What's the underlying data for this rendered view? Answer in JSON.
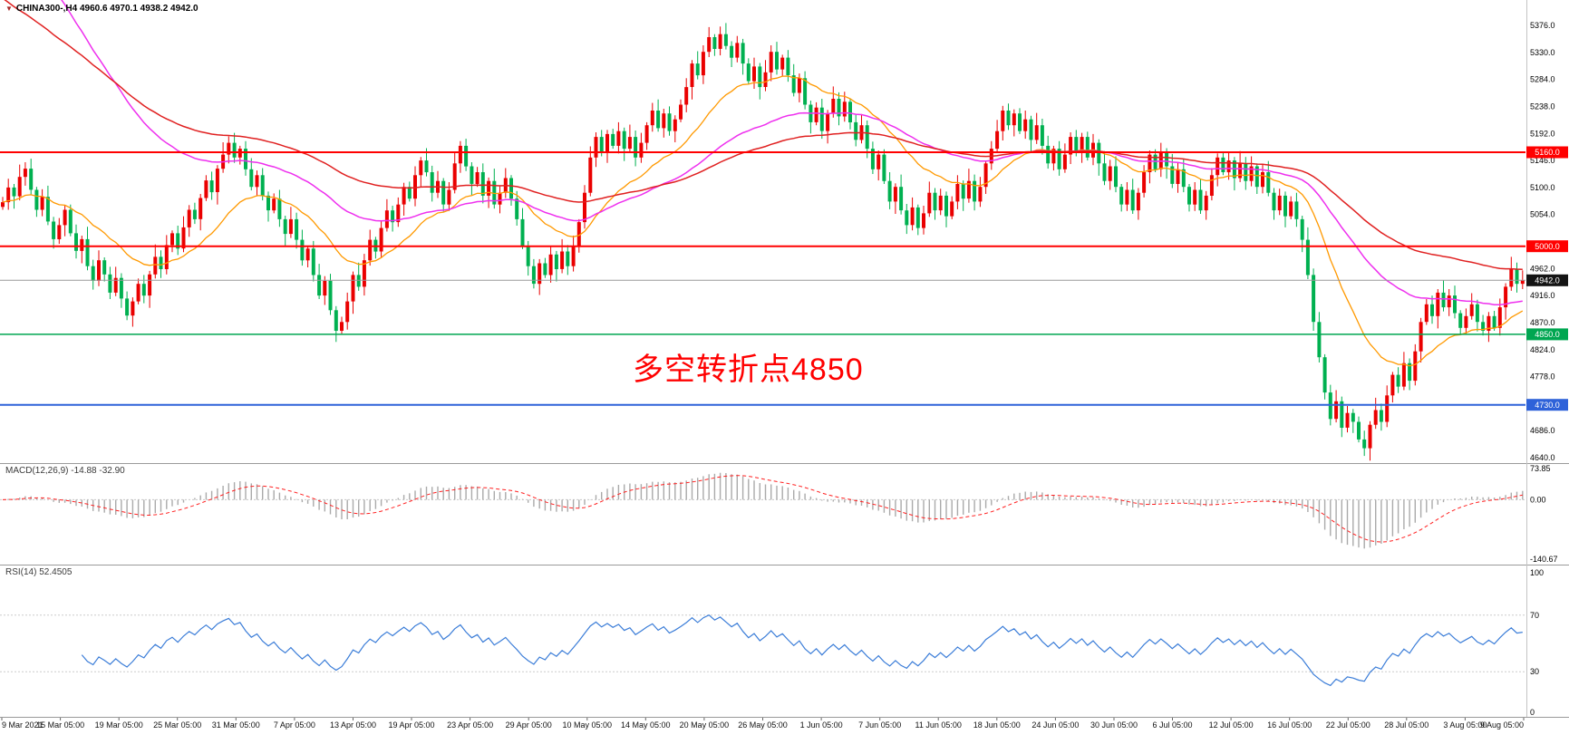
{
  "header": {
    "symbol_title": "CHINA300-,H4 4960.6 4970.1 4938.2 4942.0"
  },
  "annotation": {
    "text": "多空转折点4850",
    "color": "#ff0000"
  },
  "panels": {
    "macd": {
      "label": "MACD(12,26,9) -14.88 -32.90"
    },
    "rsi": {
      "label": "RSI(14) 52.4505"
    }
  },
  "chart_data": {
    "type": "candlestick",
    "symbol": "CHINA300-",
    "timeframe": "H4",
    "last_bar": {
      "open": 4960.6,
      "high": 4970.1,
      "low": 4938.2,
      "close": 4942.0
    },
    "price_ticks": [
      5376,
      5330,
      5284,
      5238,
      5192,
      5146,
      5100,
      5054,
      4962,
      4916,
      4870,
      4824,
      4778,
      4686,
      4640
    ],
    "time_labels": [
      "9 Mar 2021",
      "15 Mar 05:00",
      "19 Mar 05:00",
      "25 Mar 05:00",
      "31 Mar 05:00",
      "7 Apr 05:00",
      "13 Apr 05:00",
      "19 Apr 05:00",
      "23 Apr 05:00",
      "29 Apr 05:00",
      "10 May 05:00",
      "14 May 05:00",
      "20 May 05:00",
      "26 May 05:00",
      "1 Jun 05:00",
      "7 Jun 05:00",
      "11 Jun 05:00",
      "18 Jun 05:00",
      "24 Jun 05:00",
      "30 Jun 05:00",
      "6 Jul 05:00",
      "12 Jul 05:00",
      "16 Jul 05:00",
      "22 Jul 05:00",
      "28 Jul 05:00",
      "3 Aug 05:00",
      "9 Aug 05:00"
    ],
    "hlines": [
      {
        "value": 5160,
        "label": "5160.0",
        "color": "#ff0000",
        "width": 2
      },
      {
        "value": 5000,
        "label": "5000.0",
        "color": "#ff0000",
        "width": 2
      },
      {
        "value": 4850,
        "label": "4850.0",
        "color": "#00a651",
        "width": 1.5
      },
      {
        "value": 4730,
        "label": "4730.0",
        "color": "#2e62d9",
        "width": 2
      }
    ],
    "current_price": {
      "value": 4942,
      "label": "4942.0",
      "line_color": "#999999",
      "badge_color": "#141414"
    },
    "colors": {
      "up": "#ea0000",
      "down": "#00b050"
    },
    "closes": [
      5075,
      5100,
      5085,
      5118,
      5132,
      5096,
      5062,
      5084,
      5042,
      5012,
      5036,
      5062,
      5022,
      4992,
      5012,
      4966,
      4941,
      4976,
      4952,
      4921,
      4946,
      4911,
      4882,
      4906,
      4936,
      4916,
      4952,
      4982,
      4961,
      5002,
      5022,
      4996,
      5032,
      5062,
      5046,
      5082,
      5112,
      5092,
      5132,
      5156,
      5176,
      5151,
      5166,
      5131,
      5101,
      5121,
      5086,
      5061,
      5081,
      5046,
      5021,
      5046,
      5011,
      4976,
      4996,
      4951,
      4916,
      4941,
      4891,
      4856,
      4871,
      4906,
      4951,
      4931,
      4976,
      5011,
      4991,
      5031,
      5061,
      5041,
      5071,
      5101,
      5081,
      5121,
      5146,
      5126,
      5091,
      5111,
      5071,
      5096,
      5141,
      5171,
      5136,
      5106,
      5126,
      5086,
      5111,
      5071,
      5091,
      5116,
      5081,
      5046,
      5001,
      4966,
      4936,
      4971,
      4951,
      4986,
      4961,
      4991,
      4966,
      5001,
      5041,
      5091,
      5151,
      5186,
      5161,
      5191,
      5171,
      5196,
      5166,
      5186,
      5151,
      5176,
      5206,
      5231,
      5201,
      5226,
      5196,
      5216,
      5241,
      5271,
      5311,
      5291,
      5331,
      5356,
      5336,
      5361,
      5341,
      5321,
      5346,
      5311,
      5281,
      5306,
      5271,
      5296,
      5331,
      5301,
      5321,
      5291,
      5261,
      5286,
      5241,
      5211,
      5236,
      5196,
      5226,
      5251,
      5221,
      5246,
      5211,
      5181,
      5206,
      5166,
      5131,
      5156,
      5111,
      5076,
      5101,
      5061,
      5036,
      5066,
      5031,
      5056,
      5091,
      5061,
      5086,
      5051,
      5076,
      5106,
      5081,
      5111,
      5076,
      5101,
      5141,
      5166,
      5196,
      5231,
      5206,
      5226,
      5196,
      5216,
      5181,
      5206,
      5171,
      5141,
      5166,
      5131,
      5156,
      5186,
      5161,
      5186,
      5151,
      5176,
      5141,
      5111,
      5136,
      5101,
      5071,
      5096,
      5061,
      5091,
      5126,
      5156,
      5131,
      5161,
      5136,
      5106,
      5131,
      5101,
      5071,
      5096,
      5061,
      5086,
      5121,
      5151,
      5126,
      5146,
      5116,
      5141,
      5111,
      5136,
      5101,
      5126,
      5091,
      5061,
      5086,
      5051,
      5076,
      5046,
      5011,
      4951,
      4871,
      4811,
      4751,
      4706,
      4736,
      4691,
      4716,
      4701,
      4671,
      4656,
      4696,
      4721,
      4701,
      4746,
      4781,
      4761,
      4801,
      4771,
      4821,
      4871,
      4901,
      4881,
      4921,
      4896,
      4916,
      4886,
      4861,
      4881,
      4901,
      4871,
      4856,
      4881,
      4861,
      4896,
      4931,
      4961,
      4936,
      4942
    ],
    "wick_high": [
      9,
      15,
      6,
      21,
      11,
      17,
      5,
      13,
      19,
      8,
      12,
      7
    ],
    "wick_low": [
      11,
      6,
      16,
      8,
      19,
      5,
      13,
      21,
      7,
      15,
      9,
      12
    ],
    "moving_averages": [
      {
        "period": 20,
        "color": "#ff9900",
        "width": 1.3
      },
      {
        "period": 50,
        "seed": 5620,
        "color": "#ee30ee",
        "width": 1.5
      },
      {
        "period": 90,
        "seed": 5430,
        "color": "#e02020",
        "width": 1.5
      }
    ],
    "macd": {
      "fast": 12,
      "slow": 26,
      "signal": 9,
      "current_main": -14.88,
      "current_signal": -32.9,
      "axis": [
        73.85,
        0,
        -140.67
      ],
      "histogram_color": "#aaaaaa",
      "signal_color": "#ff2020"
    },
    "rsi": {
      "period": 14,
      "current": 52.4505,
      "axis": [
        100,
        70,
        30,
        0
      ],
      "levels": [
        70,
        30
      ],
      "color": "#3b7dd8"
    }
  }
}
